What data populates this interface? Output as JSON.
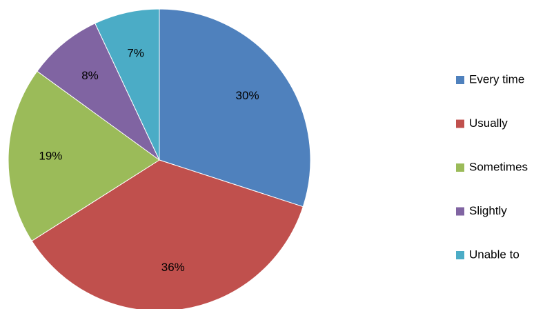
{
  "chart_data": {
    "type": "pie",
    "categories": [
      "Every time",
      "Usually",
      "Sometimes",
      "Slightly",
      "Unable to"
    ],
    "values": [
      30,
      36,
      19,
      8,
      7
    ],
    "value_labels": [
      "30%",
      "36%",
      "19%",
      "8%",
      "7%"
    ],
    "colors": [
      "#4f81bd",
      "#c0504d",
      "#9bbb59",
      "#8064a2",
      "#4bacc6"
    ],
    "legend": "right"
  }
}
